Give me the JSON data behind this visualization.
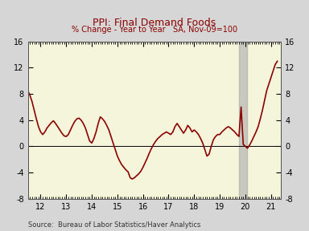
{
  "title": "PPI: Final Demand Foods",
  "subtitle": "% Change - Year to Year   SA, Nov-09=100",
  "source": "Source:  Bureau of Labor Statistics/Haver Analytics",
  "title_color": "#8B0000",
  "subtitle_color": "#8B0000",
  "line_color": "#8B0000",
  "fig_bg": "#D6D6D6",
  "plot_bg": "#F5F5DC",
  "shade_color": "#AAAAAA",
  "shade_xstart": 19.75,
  "shade_xend": 20.08,
  "xlim": [
    11.5,
    21.4
  ],
  "ylim": [
    -8,
    16
  ],
  "xticks": [
    12,
    13,
    14,
    15,
    16,
    17,
    18,
    19,
    20,
    21
  ],
  "yticks": [
    -8,
    -4,
    0,
    4,
    8,
    12,
    16
  ],
  "line_width": 1.2,
  "x": [
    11.5,
    11.583,
    11.667,
    11.75,
    11.833,
    11.917,
    12.0,
    12.083,
    12.167,
    12.25,
    12.333,
    12.417,
    12.5,
    12.583,
    12.667,
    12.75,
    12.833,
    12.917,
    13.0,
    13.083,
    13.167,
    13.25,
    13.333,
    13.417,
    13.5,
    13.583,
    13.667,
    13.75,
    13.833,
    13.917,
    14.0,
    14.083,
    14.167,
    14.25,
    14.333,
    14.417,
    14.5,
    14.583,
    14.667,
    14.75,
    14.833,
    14.917,
    15.0,
    15.083,
    15.167,
    15.25,
    15.333,
    15.417,
    15.5,
    15.583,
    15.667,
    15.75,
    15.833,
    15.917,
    16.0,
    16.083,
    16.167,
    16.25,
    16.333,
    16.417,
    16.5,
    16.583,
    16.667,
    16.75,
    16.833,
    16.917,
    17.0,
    17.083,
    17.167,
    17.25,
    17.333,
    17.417,
    17.5,
    17.583,
    17.667,
    17.75,
    17.833,
    17.917,
    18.0,
    18.083,
    18.167,
    18.25,
    18.333,
    18.417,
    18.5,
    18.583,
    18.667,
    18.75,
    18.833,
    18.917,
    19.0,
    19.083,
    19.167,
    19.25,
    19.333,
    19.417,
    19.5,
    19.583,
    19.667,
    19.75,
    19.833,
    19.917,
    20.0,
    20.083,
    20.167,
    20.25,
    20.333,
    20.417,
    20.5,
    20.583,
    20.667,
    20.75,
    20.833,
    20.917,
    21.0,
    21.083,
    21.167,
    21.25
  ],
  "y": [
    8.5,
    7.8,
    6.8,
    5.5,
    4.2,
    3.0,
    2.2,
    1.8,
    2.2,
    2.8,
    3.2,
    3.6,
    3.9,
    3.5,
    3.0,
    2.5,
    2.0,
    1.6,
    1.5,
    1.8,
    2.5,
    3.2,
    3.8,
    4.2,
    4.3,
    4.0,
    3.5,
    2.8,
    1.8,
    0.8,
    0.5,
    1.2,
    2.2,
    3.5,
    4.5,
    4.2,
    3.8,
    3.2,
    2.5,
    1.5,
    0.5,
    -0.5,
    -1.5,
    -2.2,
    -2.8,
    -3.2,
    -3.6,
    -3.9,
    -4.8,
    -5.0,
    -4.8,
    -4.5,
    -4.2,
    -3.8,
    -3.2,
    -2.5,
    -1.8,
    -1.0,
    -0.3,
    0.3,
    0.8,
    1.2,
    1.5,
    1.8,
    2.0,
    2.2,
    2.0,
    1.8,
    2.2,
    3.0,
    3.5,
    3.0,
    2.5,
    2.0,
    2.5,
    3.2,
    2.8,
    2.2,
    2.5,
    2.2,
    1.8,
    1.2,
    0.5,
    -0.5,
    -1.5,
    -1.2,
    0.0,
    1.0,
    1.5,
    1.8,
    1.8,
    2.2,
    2.5,
    2.8,
    3.0,
    2.8,
    2.5,
    2.2,
    1.8,
    1.5,
    6.0,
    0.3,
    0.0,
    -0.3,
    0.2,
    0.8,
    1.5,
    2.2,
    3.0,
    4.2,
    5.5,
    7.0,
    8.5,
    9.5,
    10.5,
    11.5,
    12.5,
    13.0
  ]
}
